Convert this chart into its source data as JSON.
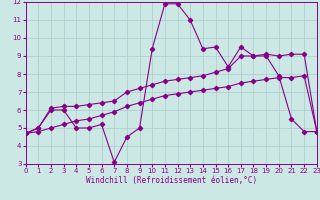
{
  "xlabel": "Windchill (Refroidissement éolien,°C)",
  "xlim": [
    0,
    23
  ],
  "ylim": [
    3,
    12
  ],
  "xticks": [
    0,
    1,
    2,
    3,
    4,
    5,
    6,
    7,
    8,
    9,
    10,
    11,
    12,
    13,
    14,
    15,
    16,
    17,
    18,
    19,
    20,
    21,
    22,
    23
  ],
  "yticks": [
    3,
    4,
    5,
    6,
    7,
    8,
    9,
    10,
    11,
    12
  ],
  "background_color": "#cce8e4",
  "grid_color": "#aacccc",
  "line_color": "#880088",
  "line1_x": [
    0,
    1,
    2,
    3,
    4,
    5,
    6,
    7,
    8,
    9,
    10,
    11,
    12,
    13,
    14,
    15,
    16,
    17,
    18,
    19,
    20,
    21,
    22,
    23
  ],
  "line1_y": [
    4.7,
    5.0,
    6.0,
    6.0,
    5.0,
    5.0,
    5.2,
    3.1,
    4.5,
    5.0,
    9.4,
    11.9,
    11.9,
    11.0,
    9.4,
    9.5,
    8.4,
    9.5,
    9.0,
    9.0,
    7.9,
    5.5,
    4.8,
    4.8
  ],
  "line2_x": [
    0,
    1,
    2,
    3,
    4,
    5,
    6,
    7,
    8,
    9,
    10,
    11,
    12,
    13,
    14,
    15,
    16,
    17,
    18,
    19,
    20,
    21,
    22,
    23
  ],
  "line2_y": [
    4.7,
    5.0,
    6.1,
    6.2,
    6.2,
    6.3,
    6.4,
    6.5,
    7.0,
    7.2,
    7.4,
    7.6,
    7.7,
    7.8,
    7.9,
    8.1,
    8.3,
    9.0,
    9.0,
    9.1,
    9.0,
    9.1,
    9.1,
    4.8
  ],
  "line3_x": [
    0,
    1,
    2,
    3,
    4,
    5,
    6,
    7,
    8,
    9,
    10,
    11,
    12,
    13,
    14,
    15,
    16,
    17,
    18,
    19,
    20,
    21,
    22,
    23
  ],
  "line3_y": [
    4.7,
    4.8,
    5.0,
    5.2,
    5.4,
    5.5,
    5.7,
    5.9,
    6.2,
    6.4,
    6.6,
    6.8,
    6.9,
    7.0,
    7.1,
    7.2,
    7.3,
    7.5,
    7.6,
    7.7,
    7.8,
    7.8,
    7.9,
    4.8
  ]
}
